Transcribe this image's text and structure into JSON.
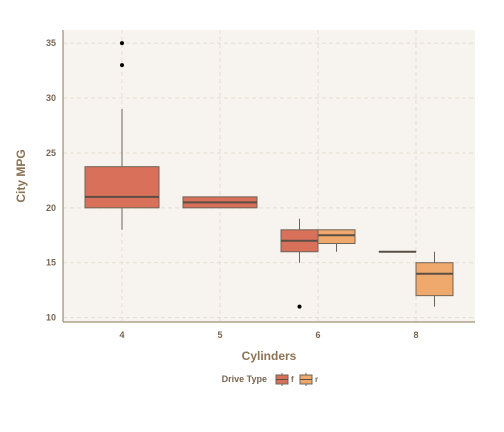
{
  "chart_data": {
    "type": "box",
    "xlabel": "Cylinders",
    "ylabel": "City MPG",
    "categories": [
      "4",
      "5",
      "6",
      "8"
    ],
    "ylim": [
      9.6,
      36.2
    ],
    "y_ticks": [
      10,
      15,
      20,
      25,
      30,
      35
    ],
    "grid": true,
    "legend": {
      "title": "Drive Type",
      "position": "bottom",
      "entries": [
        "f",
        "r"
      ]
    },
    "series": [
      {
        "name": "f",
        "color": "#d8705a",
        "boxes": [
          {
            "category": "4",
            "min": 18,
            "q1": 20,
            "median": 21,
            "q3": 23.75,
            "max": 29,
            "outliers": [
              33,
              35
            ]
          },
          {
            "category": "5",
            "min": 20,
            "q1": 20,
            "median": 20.5,
            "q3": 21,
            "max": 21,
            "outliers": []
          },
          {
            "category": "6",
            "min": 15,
            "q1": 16,
            "median": 17,
            "q3": 18,
            "max": 19,
            "outliers": [
              11
            ]
          },
          {
            "category": "8",
            "min": 16,
            "q1": 16,
            "median": 16,
            "q3": 16,
            "max": 16,
            "outliers": []
          }
        ]
      },
      {
        "name": "r",
        "color": "#efa96c",
        "boxes": [
          {
            "category": "6",
            "min": 16,
            "q1": 16.75,
            "median": 17.5,
            "q3": 18,
            "max": 18,
            "outliers": []
          },
          {
            "category": "8",
            "min": 11,
            "q1": 12,
            "median": 14,
            "q3": 15,
            "max": 16,
            "outliers": []
          }
        ]
      }
    ]
  }
}
